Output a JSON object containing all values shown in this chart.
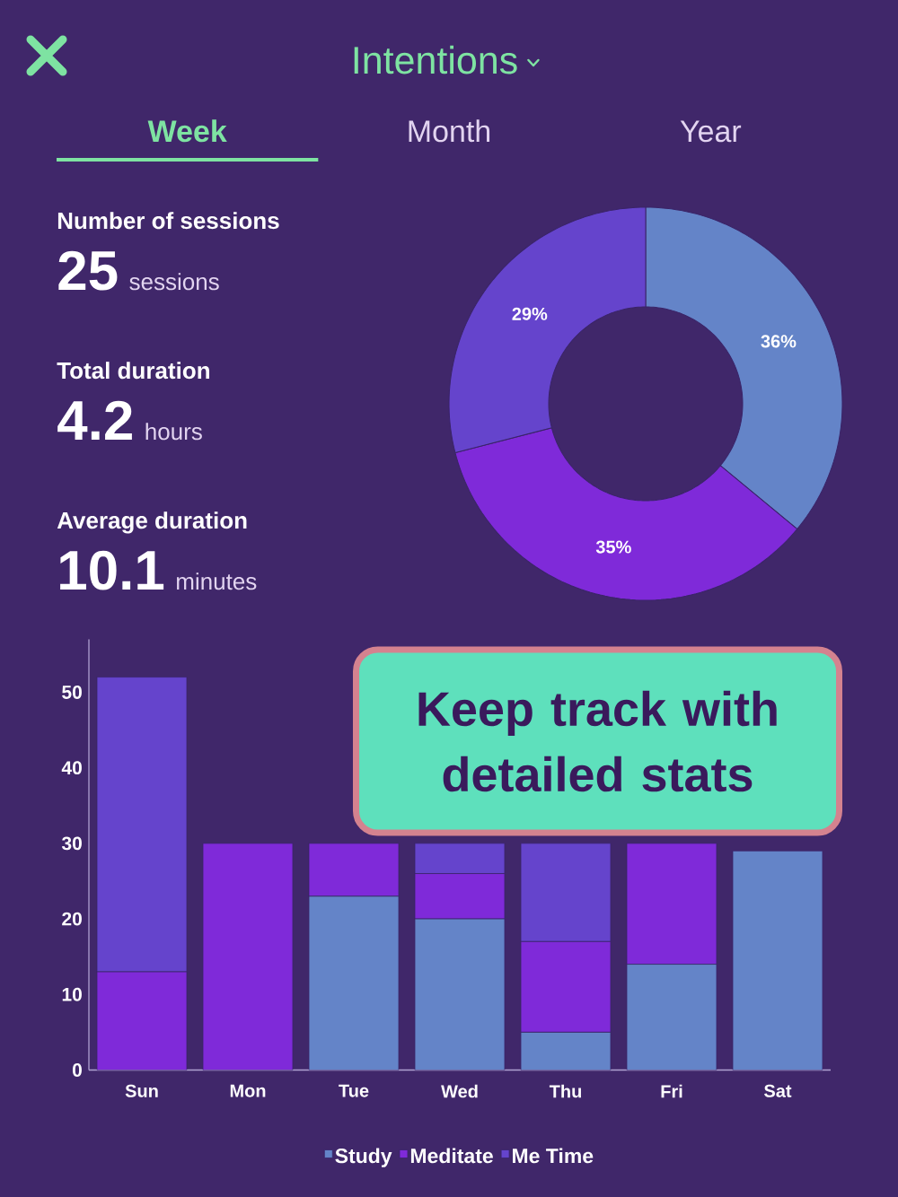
{
  "chart_data": [
    {
      "type": "other",
      "title": "Intentions",
      "categories": [
        "Week",
        "Month",
        "Year"
      ],
      "annotations": [
        "Number of sessions",
        "25",
        "sessions",
        "Total duration",
        "4.2",
        "hours",
        "Average duration",
        "10.1",
        "minutes"
      ]
    },
    {
      "type": "donut",
      "categories": [
        null,
        null,
        null
      ],
      "values": [
        36,
        35,
        29
      ],
      "colors": [
        "#6484c8",
        "#7f2ad9",
        "#6544cc"
      ],
      "value_labels": [
        "36%",
        "35%",
        "29%"
      ]
    },
    {
      "type": "bar",
      "stacked": true,
      "categories": [
        "Sun",
        "Mon",
        "Tue",
        "Wed",
        "Thu",
        "Fri",
        "Sat"
      ],
      "series": [
        {
          "name": "Study",
          "color": "#6484c8",
          "values": [
            null,
            null,
            23,
            20,
            5,
            14,
            29
          ]
        },
        {
          "name": "Meditate",
          "color": "#7f2ad9",
          "values": [
            13,
            30,
            7,
            6,
            12,
            16,
            null
          ]
        },
        {
          "name": "Me Time",
          "color": "#6544cc",
          "values": [
            39,
            null,
            null,
            4,
            13,
            null,
            null
          ]
        }
      ],
      "ylim": [
        0,
        57
      ],
      "yticks": [
        0,
        10,
        20,
        30,
        40,
        50
      ],
      "legend": "bottom",
      "annotations": [
        "Keep track with detailed stats"
      ]
    }
  ]
}
